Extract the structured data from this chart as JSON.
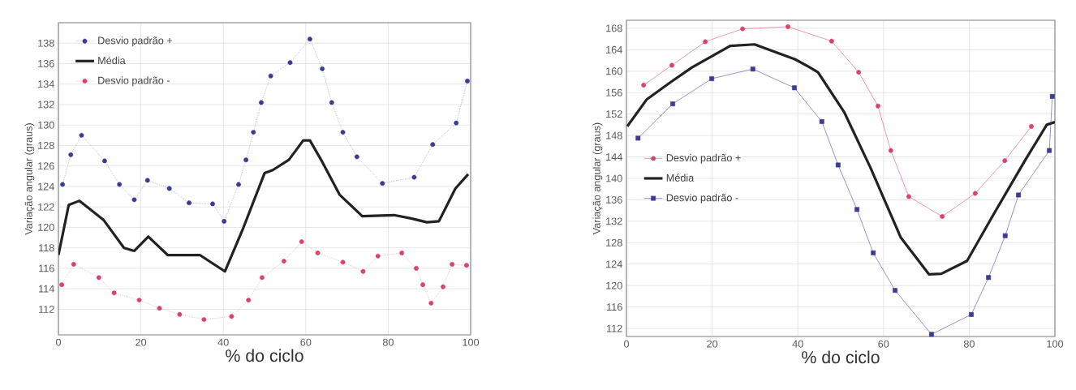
{
  "chart_data": [
    {
      "type": "line",
      "xlabel": "% do ciclo",
      "ylabel": "Variação angular (graus)",
      "xlim": [
        0,
        100
      ],
      "xticks": [
        0,
        20,
        40,
        60,
        80,
        100
      ],
      "ylim": [
        109.5,
        140
      ],
      "yticks": [
        112,
        114,
        116,
        118,
        120,
        122,
        124,
        126,
        128,
        130,
        132,
        134,
        136,
        138
      ],
      "grid": true,
      "legend": "top left",
      "series": [
        {
          "name": "Desvio padrão +",
          "color": "#3b3b8f",
          "marker": "circle",
          "line_style": "dotted",
          "x": [
            1,
            3,
            5.6,
            11.2,
            14.8,
            18.4,
            21.6,
            26.9,
            31.7,
            37.4,
            40.2,
            43.7,
            45.5,
            47.3,
            49.2,
            51.5,
            56.2,
            61,
            64,
            66.3,
            69,
            72.4,
            78.6,
            86.3,
            90.8,
            96.5,
            99.2
          ],
          "values": [
            124.2,
            127.1,
            129.0,
            126.5,
            124.2,
            122.7,
            124.6,
            123.8,
            122.4,
            122.3,
            120.6,
            124.2,
            126.6,
            129.3,
            132.2,
            134.8,
            136.1,
            138.4,
            135.5,
            132.2,
            129.3,
            126.9,
            124.3,
            124.9,
            128.1,
            130.2,
            134.3
          ]
        },
        {
          "name": "Média",
          "color": "#222222",
          "marker": "none",
          "line_style": "solid",
          "x": [
            0,
            2.5,
            5.1,
            11,
            15.9,
            18.4,
            21.8,
            26.5,
            31.6,
            34.3,
            40.4,
            44.7,
            50,
            52,
            55.9,
            59.4,
            61,
            64,
            68.2,
            73.7,
            81.4,
            85.3,
            89.4,
            92.3,
            96.3,
            99.4
          ],
          "values": [
            117.3,
            122.2,
            122.6,
            120.7,
            118.0,
            117.7,
            119.1,
            117.3,
            117.3,
            117.3,
            115.7,
            119.8,
            125.3,
            125.6,
            126.6,
            128.5,
            128.5,
            126.4,
            123.2,
            121.1,
            121.2,
            120.9,
            120.5,
            120.6,
            123.8,
            125.2
          ]
        },
        {
          "name": "Desvio padrão -",
          "color": "#d9436a",
          "marker": "circle",
          "line_style": "dotted",
          "x": [
            0.8,
            3.7,
            9.8,
            13.5,
            19.6,
            24.5,
            29.4,
            35.3,
            42,
            46.1,
            49.4,
            54.7,
            59,
            62.9,
            69,
            73.9,
            77.5,
            83.3,
            86.8,
            88.4,
            90.4,
            93.3,
            95.5,
            99
          ],
          "values": [
            114.4,
            116.4,
            115.1,
            113.6,
            112.9,
            112.1,
            111.5,
            111.0,
            111.3,
            112.9,
            115.1,
            116.7,
            118.6,
            117.5,
            116.6,
            115.7,
            117.2,
            117.5,
            116.0,
            114.4,
            112.6,
            114.2,
            116.4,
            116.3
          ]
        }
      ]
    },
    {
      "type": "line",
      "xlabel": "% do ciclo",
      "ylabel": "Variação angular (graus)",
      "xlim": [
        0,
        100
      ],
      "xticks": [
        0,
        20,
        40,
        60,
        80,
        100
      ],
      "ylim": [
        110.5,
        169.5
      ],
      "yticks": [
        112,
        116,
        120,
        124,
        128,
        132,
        136,
        140,
        144,
        148,
        152,
        156,
        160,
        164,
        168
      ],
      "grid": true,
      "legend": "left",
      "series": [
        {
          "name": "Desvio padrão +",
          "color": "#d9436a",
          "marker": "circle",
          "line_style": "solid",
          "x": [
            4.0,
            10.6,
            18.4,
            27.1,
            37.7,
            47.9,
            54.2,
            58.7,
            61.7,
            65.9,
            73.7,
            81.4,
            88.3,
            94.5
          ],
          "values": [
            157.4,
            161.1,
            165.5,
            167.9,
            168.3,
            165.6,
            159.8,
            153.5,
            145.2,
            136.6,
            132.9,
            137.2,
            143.3,
            149.7
          ]
        },
        {
          "name": "Média",
          "color": "#222222",
          "marker": "none",
          "line_style": "solid",
          "x": [
            0.2,
            4.7,
            10.4,
            15.3,
            24.2,
            29.9,
            39.4,
            42.8,
            44.7,
            50.8,
            57,
            64,
            70.6,
            73.5,
            79.5,
            85.4,
            93,
            98.1,
            100
          ],
          "values": [
            149.7,
            154.7,
            158.0,
            160.7,
            164.7,
            165.0,
            162.2,
            160.7,
            159.8,
            152.4,
            141.9,
            129.0,
            122.1,
            122.2,
            124.6,
            132.9,
            143.3,
            150.0,
            150.5
          ]
        },
        {
          "name": "Desvio padrão -",
          "color": "#3b3b8f",
          "marker": "square",
          "line_style": "solid",
          "x": [
            2.7,
            10.8,
            19.9,
            29.5,
            39.2,
            45.6,
            49.4,
            53.8,
            57.6,
            62.7,
            71.2,
            80.5,
            84.5,
            88.4,
            91.5,
            98.7,
            99.4
          ],
          "values": [
            147.5,
            153.9,
            158.6,
            160.4,
            156.9,
            150.6,
            142.5,
            134.2,
            126.1,
            119.1,
            110.9,
            114.6,
            121.5,
            129.3,
            136.9,
            145.2,
            155.3
          ]
        }
      ]
    }
  ]
}
